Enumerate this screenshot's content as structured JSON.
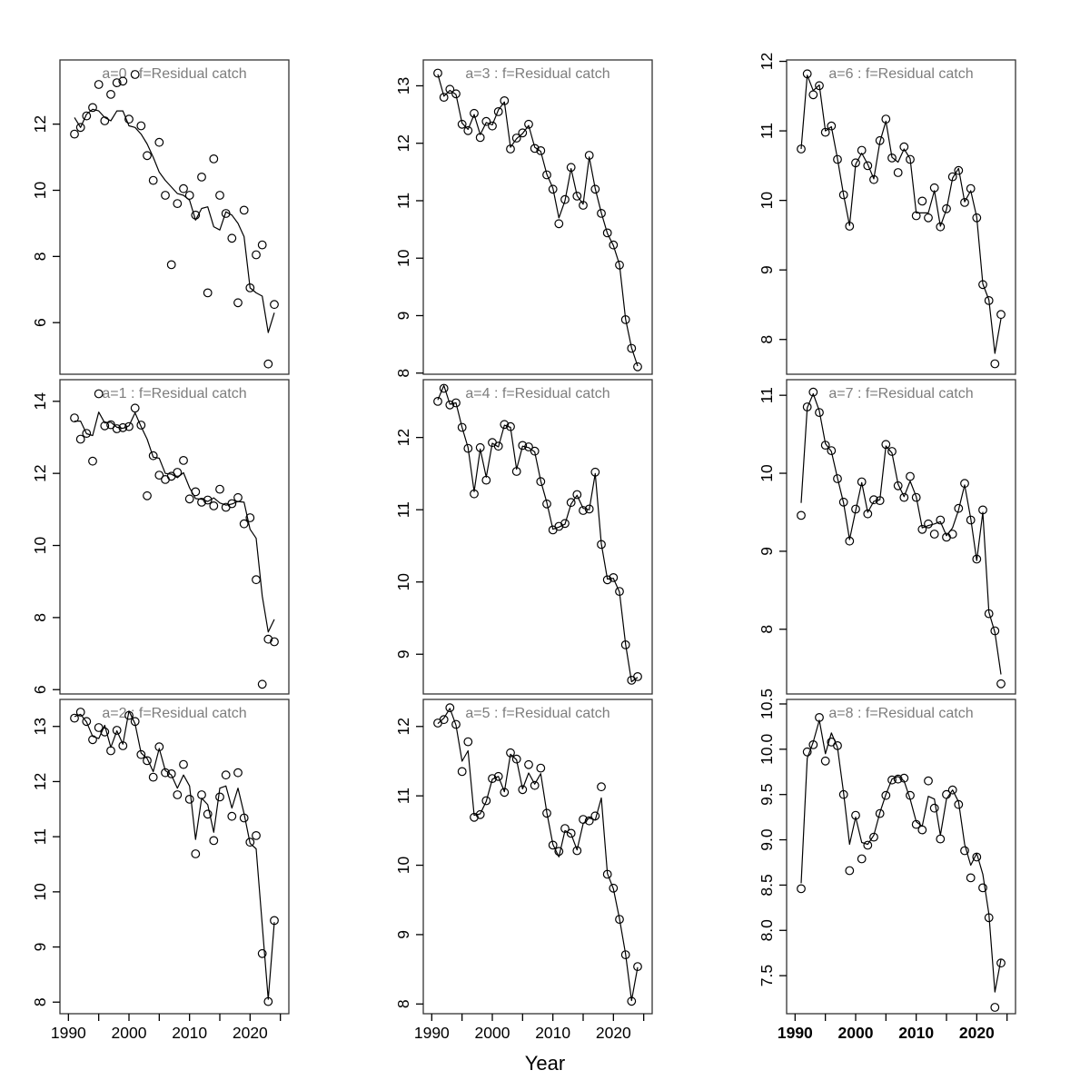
{
  "figure": {
    "background": "#ffffff"
  },
  "colors": {
    "title": "#7d7d7d",
    "axis": "#000000",
    "line": "#000000",
    "point": "#000000",
    "box": "#333333"
  },
  "chart_meta": {
    "type": "line",
    "x_label": "Year",
    "xlim": [
      1988.6,
      2026.4
    ],
    "x_ticks": [
      1990,
      1995,
      2000,
      2005,
      2010,
      2015,
      2020,
      2025
    ],
    "x_labeled_ticks": [
      1990,
      2000,
      2010,
      2020
    ],
    "years": [
      1991,
      1992,
      1993,
      1994,
      1995,
      1996,
      1997,
      1998,
      1999,
      2000,
      2001,
      2002,
      2003,
      2004,
      2005,
      2006,
      2007,
      2008,
      2009,
      2010,
      2011,
      2012,
      2013,
      2014,
      2015,
      2016,
      2017,
      2018,
      2019,
      2020,
      2021,
      2022,
      2023,
      2024
    ],
    "series_styles": {
      "obs": "open-circle",
      "fit": "solid-line"
    },
    "grid": "off",
    "legend": "none"
  },
  "chart_data": [
    {
      "id": "a0",
      "title": "a=0 : f=Residual catch",
      "row": 0,
      "col": 0,
      "ylim": [
        4.44,
        13.94
      ],
      "ytick_values": [
        6,
        8,
        10,
        12
      ],
      "ytick_labels": [
        "6",
        "8",
        "10",
        "12"
      ],
      "obs": [
        11.7,
        11.9,
        12.25,
        12.5,
        13.2,
        12.1,
        12.9,
        13.25,
        13.3,
        12.15,
        13.5,
        11.95,
        11.05,
        10.3,
        11.45,
        9.85,
        7.75,
        9.6,
        10.05,
        9.85,
        9.25,
        10.4,
        6.9,
        10.95,
        9.85,
        9.3,
        8.55,
        6.6,
        9.4,
        7.05,
        8.05,
        8.35,
        4.75,
        6.55
      ],
      "fit": [
        12.2,
        11.9,
        12.3,
        12.45,
        12.4,
        12.2,
        12.1,
        12.4,
        12.4,
        11.95,
        11.9,
        11.7,
        11.4,
        11.0,
        10.55,
        10.3,
        10.1,
        9.9,
        9.85,
        9.7,
        9.1,
        9.45,
        9.5,
        8.9,
        8.8,
        9.35,
        9.25,
        9.0,
        8.6,
        7.05,
        6.9,
        6.8,
        5.7,
        6.3
      ]
    },
    {
      "id": "a1",
      "title": "a=1 : f=Residual catch",
      "row": 1,
      "col": 0,
      "ylim": [
        5.88,
        14.6
      ],
      "ytick_values": [
        6,
        8,
        10,
        12,
        14
      ],
      "ytick_labels": [
        "6",
        "8",
        "10",
        "12",
        "14"
      ],
      "obs": [
        13.54,
        12.95,
        13.11,
        12.34,
        14.21,
        13.32,
        13.35,
        13.24,
        13.27,
        13.3,
        13.81,
        13.34,
        11.38,
        12.49,
        11.95,
        11.83,
        11.92,
        12.03,
        12.36,
        11.29,
        11.49,
        11.2,
        11.26,
        11.1,
        11.56,
        11.06,
        11.16,
        11.33,
        10.6,
        10.77,
        9.05,
        6.15,
        7.4,
        7.33
      ],
      "fit": [
        13.45,
        13.45,
        13.1,
        13.05,
        13.7,
        13.4,
        13.42,
        13.28,
        13.25,
        13.32,
        13.68,
        13.3,
        12.95,
        12.45,
        12.42,
        12.0,
        11.98,
        11.88,
        12.02,
        11.6,
        11.3,
        11.28,
        11.22,
        11.32,
        11.18,
        11.12,
        11.15,
        11.22,
        11.2,
        10.45,
        10.2,
        8.6,
        7.6,
        7.95
      ]
    },
    {
      "id": "a2",
      "title": "a=2 : f=Residual catch",
      "row": 2,
      "col": 0,
      "ylim": [
        7.79,
        13.49
      ],
      "ytick_values": [
        8,
        9,
        10,
        11,
        12,
        13
      ],
      "ytick_labels": [
        "8",
        "9",
        "10",
        "11",
        "12",
        "13"
      ],
      "obs": [
        13.15,
        13.26,
        13.09,
        12.76,
        12.98,
        12.9,
        12.56,
        12.93,
        12.65,
        13.2,
        13.09,
        12.49,
        12.38,
        12.08,
        12.63,
        12.16,
        12.14,
        11.76,
        12.31,
        11.68,
        10.69,
        11.76,
        11.41,
        10.93,
        11.72,
        12.12,
        11.37,
        12.16,
        11.34,
        10.9,
        11.02,
        8.88,
        8.01,
        9.48
      ],
      "fit": [
        13.18,
        13.22,
        13.08,
        12.82,
        12.78,
        13.02,
        12.62,
        12.92,
        12.68,
        13.28,
        13.05,
        12.52,
        12.42,
        12.18,
        12.6,
        12.2,
        12.12,
        11.88,
        12.12,
        11.92,
        10.95,
        11.7,
        11.58,
        11.08,
        11.88,
        11.92,
        11.52,
        11.88,
        11.42,
        10.88,
        10.78,
        9.4,
        8.05,
        9.45
      ]
    },
    {
      "id": "a3",
      "title": "a=3 : f=Residual catch",
      "row": 0,
      "col": 1,
      "ylim": [
        7.98,
        13.45
      ],
      "ytick_values": [
        8,
        9,
        10,
        11,
        12,
        13
      ],
      "ytick_labels": [
        "8",
        "9",
        "10",
        "11",
        "12",
        "13"
      ],
      "obs": [
        13.22,
        12.8,
        12.94,
        12.86,
        12.33,
        12.22,
        12.52,
        12.1,
        12.38,
        12.3,
        12.55,
        12.74,
        11.9,
        12.09,
        12.18,
        12.33,
        11.91,
        11.87,
        11.45,
        11.2,
        10.6,
        11.02,
        11.58,
        11.08,
        10.92,
        11.79,
        11.2,
        10.78,
        10.44,
        10.23,
        9.88,
        8.93,
        8.43,
        8.11
      ],
      "fit": [
        13.2,
        12.82,
        12.92,
        12.85,
        12.35,
        12.24,
        12.5,
        12.15,
        12.36,
        12.32,
        12.58,
        12.72,
        11.93,
        12.08,
        12.17,
        12.31,
        11.93,
        11.86,
        11.46,
        11.22,
        10.7,
        11.0,
        11.56,
        11.09,
        10.94,
        11.76,
        11.21,
        10.79,
        10.43,
        10.22,
        9.89,
        8.94,
        8.44,
        8.12
      ]
    },
    {
      "id": "a4",
      "title": "a=4 : f=Residual catch",
      "row": 1,
      "col": 1,
      "ylim": [
        8.45,
        12.8
      ],
      "ytick_values": [
        9,
        10,
        11,
        12
      ],
      "ytick_labels": [
        "9",
        "10",
        "11",
        "12"
      ],
      "obs": [
        12.5,
        12.68,
        12.45,
        12.48,
        12.14,
        11.85,
        11.22,
        11.86,
        11.41,
        11.93,
        11.88,
        12.18,
        12.15,
        11.53,
        11.89,
        11.87,
        11.81,
        11.39,
        11.08,
        10.72,
        10.77,
        10.81,
        11.1,
        11.21,
        10.99,
        11.01,
        11.52,
        10.52,
        10.03,
        10.06,
        9.87,
        9.13,
        8.64,
        8.69
      ],
      "fit": [
        12.52,
        12.72,
        12.46,
        12.48,
        12.14,
        11.86,
        11.25,
        11.84,
        11.45,
        11.92,
        11.87,
        12.17,
        12.14,
        11.56,
        11.88,
        11.86,
        11.8,
        11.4,
        11.1,
        10.73,
        10.76,
        10.8,
        11.08,
        11.2,
        11.02,
        11.0,
        11.5,
        10.53,
        10.04,
        10.05,
        9.86,
        9.14,
        8.62,
        8.68
      ]
    },
    {
      "id": "a5",
      "title": "a=5 : f=Residual catch",
      "row": 2,
      "col": 1,
      "ylim": [
        7.86,
        12.39
      ],
      "ytick_values": [
        8,
        9,
        10,
        11,
        12
      ],
      "ytick_labels": [
        "8",
        "9",
        "10",
        "11",
        "12"
      ],
      "obs": [
        12.05,
        12.1,
        12.27,
        12.03,
        11.35,
        11.78,
        10.69,
        10.73,
        10.93,
        11.25,
        11.28,
        11.05,
        11.62,
        11.53,
        11.09,
        11.45,
        11.15,
        11.4,
        10.75,
        10.29,
        10.2,
        10.53,
        10.46,
        10.21,
        10.66,
        10.64,
        10.71,
        11.13,
        9.87,
        9.67,
        9.22,
        8.71,
        8.04,
        8.54
      ],
      "fit": [
        12.04,
        12.12,
        12.26,
        12.02,
        11.5,
        11.65,
        10.72,
        10.74,
        10.92,
        11.24,
        11.28,
        11.06,
        11.6,
        11.52,
        11.1,
        11.33,
        11.17,
        11.32,
        10.76,
        10.3,
        10.12,
        10.5,
        10.45,
        10.22,
        10.6,
        10.68,
        10.65,
        10.97,
        9.88,
        9.66,
        9.23,
        8.72,
        8.05,
        8.53
      ]
    },
    {
      "id": "a6",
      "title": "a=6 : f=Residual catch",
      "row": 0,
      "col": 2,
      "ylim": [
        7.5,
        12.02
      ],
      "ytick_values": [
        8,
        9,
        10,
        11,
        12
      ],
      "ytick_labels": [
        "8",
        "9",
        "10",
        "11",
        "12"
      ],
      "obs": [
        10.74,
        11.82,
        11.52,
        11.65,
        10.98,
        11.07,
        10.59,
        10.08,
        9.63,
        10.54,
        10.72,
        10.5,
        10.3,
        10.86,
        11.17,
        10.61,
        10.4,
        10.77,
        10.59,
        9.78,
        9.99,
        9.75,
        10.18,
        9.62,
        9.88,
        10.34,
        10.43,
        9.97,
        10.17,
        9.75,
        8.79,
        8.56,
        7.65,
        8.36
      ],
      "fit": [
        10.74,
        11.8,
        11.58,
        11.66,
        11.0,
        11.06,
        10.6,
        10.08,
        9.64,
        10.52,
        10.68,
        10.52,
        10.31,
        10.84,
        11.14,
        10.62,
        10.55,
        10.74,
        10.6,
        9.82,
        9.82,
        9.82,
        10.14,
        9.63,
        9.87,
        10.32,
        10.46,
        9.98,
        10.14,
        9.76,
        8.8,
        8.57,
        7.8,
        8.3
      ]
    },
    {
      "id": "a7",
      "title": "a=7 : f=Residual catch",
      "row": 1,
      "col": 2,
      "ylim": [
        7.17,
        11.2
      ],
      "ytick_values": [
        8,
        9,
        10,
        11
      ],
      "ytick_labels": [
        "8",
        "9",
        "10",
        "11"
      ],
      "obs": [
        9.46,
        10.85,
        11.04,
        10.78,
        10.36,
        10.29,
        9.93,
        9.63,
        9.13,
        9.54,
        9.89,
        9.48,
        9.66,
        9.65,
        10.37,
        10.28,
        9.84,
        9.69,
        9.96,
        9.69,
        9.28,
        9.35,
        9.22,
        9.4,
        9.18,
        9.22,
        9.55,
        9.87,
        9.4,
        8.9,
        9.53,
        8.2,
        7.98,
        7.3
      ],
      "fit": [
        9.62,
        10.84,
        11.02,
        10.8,
        10.38,
        10.28,
        9.94,
        9.62,
        9.15,
        9.52,
        9.88,
        9.5,
        9.64,
        9.66,
        10.35,
        10.26,
        9.86,
        9.7,
        9.9,
        9.7,
        9.3,
        9.33,
        9.35,
        9.38,
        9.2,
        9.3,
        9.53,
        9.85,
        9.42,
        8.88,
        9.5,
        8.22,
        7.96,
        7.42
      ]
    },
    {
      "id": "a8",
      "title": "a=8 : f=Residual catch",
      "row": 2,
      "col": 2,
      "ylim": [
        7.08,
        10.55
      ],
      "ytick_values": [
        7.5,
        8.0,
        8.5,
        9.0,
        9.5,
        10.0,
        10.5
      ],
      "ytick_labels": [
        "7.5",
        "8.0",
        "8.5",
        "9.0",
        "9.5",
        "10.0",
        "10.5"
      ],
      "obs": [
        8.46,
        9.97,
        10.05,
        10.35,
        9.87,
        10.08,
        10.04,
        9.5,
        8.66,
        9.27,
        8.79,
        8.94,
        9.03,
        9.29,
        9.49,
        9.66,
        9.67,
        9.68,
        9.49,
        9.17,
        9.11,
        9.65,
        9.35,
        9.01,
        9.5,
        9.55,
        9.39,
        8.88,
        8.58,
        8.81,
        8.47,
        8.14,
        7.15,
        7.64
      ],
      "fit": [
        8.52,
        9.9,
        10.08,
        10.32,
        9.95,
        10.18,
        10.02,
        9.52,
        8.95,
        9.25,
        8.97,
        8.95,
        9.05,
        9.3,
        9.5,
        9.67,
        9.7,
        9.65,
        9.45,
        9.2,
        9.15,
        9.48,
        9.45,
        9.05,
        9.45,
        9.55,
        9.42,
        8.95,
        8.72,
        8.85,
        8.62,
        8.18,
        7.32,
        7.68
      ]
    }
  ]
}
